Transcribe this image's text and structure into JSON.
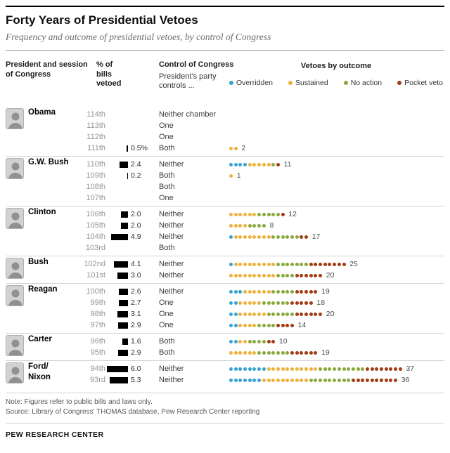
{
  "header": {
    "title": "Forty Years of Presidential Vetoes",
    "subtitle": "Frequency and outcome of presidential vetoes, by control of Congress"
  },
  "columns": {
    "president_line1": "President and session",
    "president_line2": "of Congress",
    "pct_line1": "% of",
    "pct_line2": "bills",
    "pct_line3": "vetoed",
    "control_title": "Control of Congress",
    "control_sub1": "President's party",
    "control_sub2": "controls ...",
    "outcome_title": "Vetoes by outcome"
  },
  "legend": [
    {
      "key": "overridden",
      "label": "Overridden",
      "color": "#33a3d3"
    },
    {
      "key": "sustained",
      "label": "Sustained",
      "color": "#ecb23d"
    },
    {
      "key": "no_action",
      "label": "No action",
      "color": "#8aa93c"
    },
    {
      "key": "pocket",
      "label": "Pocket veto",
      "color": "#a23b12"
    }
  ],
  "footer": {
    "note": "Note: Figures refer to public bills and laws only.",
    "source": "Source: Library of Congress' THOMAS database, Pew Research Center reporting",
    "brand": "PEW RESEARCH CENTER"
  },
  "chart_data": {
    "type": "dot-plot",
    "outcome_order": [
      "overridden",
      "sustained",
      "no_action",
      "pocket"
    ],
    "bar_unit": "percent of bills vetoed, black bar right-aligned, ~5px per 1%",
    "groups": [
      {
        "id": "obama",
        "president": "Obama",
        "rows": [
          {
            "session": "114th",
            "pct": null,
            "pct_label": "",
            "control": "Neither chamber",
            "total": 0,
            "outcomes": {
              "overridden": 0,
              "sustained": 0,
              "no_action": 0,
              "pocket": 0
            }
          },
          {
            "session": "113th",
            "pct": null,
            "pct_label": "",
            "control": "One",
            "total": 0,
            "outcomes": {
              "overridden": 0,
              "sustained": 0,
              "no_action": 0,
              "pocket": 0
            }
          },
          {
            "session": "112th",
            "pct": null,
            "pct_label": "",
            "control": "One",
            "total": 0,
            "outcomes": {
              "overridden": 0,
              "sustained": 0,
              "no_action": 0,
              "pocket": 0
            }
          },
          {
            "session": "111th",
            "pct": 0.5,
            "pct_label": "0.5%",
            "control": "Both",
            "total": 2,
            "outcomes": {
              "overridden": 0,
              "sustained": 2,
              "no_action": 0,
              "pocket": 0
            }
          }
        ]
      },
      {
        "id": "gw-bush",
        "president": "G.W. Bush",
        "rows": [
          {
            "session": "110th",
            "pct": 2.4,
            "pct_label": "2.4",
            "control": "Neither",
            "total": 11,
            "outcomes": {
              "overridden": 4,
              "sustained": 5,
              "no_action": 1,
              "pocket": 1
            }
          },
          {
            "session": "109th",
            "pct": 0.2,
            "pct_label": "0.2",
            "control": "Both",
            "total": 1,
            "outcomes": {
              "overridden": 0,
              "sustained": 1,
              "no_action": 0,
              "pocket": 0
            }
          },
          {
            "session": "108th",
            "pct": null,
            "pct_label": "",
            "control": "Both",
            "total": 0,
            "outcomes": {
              "overridden": 0,
              "sustained": 0,
              "no_action": 0,
              "pocket": 0
            }
          },
          {
            "session": "107th",
            "pct": null,
            "pct_label": "",
            "control": "One",
            "total": 0,
            "outcomes": {
              "overridden": 0,
              "sustained": 0,
              "no_action": 0,
              "pocket": 0
            }
          }
        ]
      },
      {
        "id": "clinton",
        "president": "Clinton",
        "rows": [
          {
            "session": "106th",
            "pct": 2.0,
            "pct_label": "2.0",
            "control": "Neither",
            "total": 12,
            "outcomes": {
              "overridden": 0,
              "sustained": 6,
              "no_action": 5,
              "pocket": 1
            }
          },
          {
            "session": "105th",
            "pct": 2.0,
            "pct_label": "2.0",
            "control": "Neither",
            "total": 8,
            "outcomes": {
              "overridden": 0,
              "sustained": 4,
              "no_action": 4,
              "pocket": 0
            }
          },
          {
            "session": "104th",
            "pct": 4.9,
            "pct_label": "4.9",
            "control": "Neither",
            "total": 17,
            "outcomes": {
              "overridden": 1,
              "sustained": 8,
              "no_action": 6,
              "pocket": 2
            }
          },
          {
            "session": "103rd",
            "pct": null,
            "pct_label": "",
            "control": "Both",
            "total": 0,
            "outcomes": {
              "overridden": 0,
              "sustained": 0,
              "no_action": 0,
              "pocket": 0
            }
          }
        ]
      },
      {
        "id": "bush",
        "president": "Bush",
        "rows": [
          {
            "session": "102nd",
            "pct": 4.1,
            "pct_label": "4.1",
            "control": "Neither",
            "total": 25,
            "outcomes": {
              "overridden": 1,
              "sustained": 9,
              "no_action": 7,
              "pocket": 8
            }
          },
          {
            "session": "101st",
            "pct": 3.0,
            "pct_label": "3.0",
            "control": "Neither",
            "total": 20,
            "outcomes": {
              "overridden": 0,
              "sustained": 10,
              "no_action": 4,
              "pocket": 6
            }
          }
        ]
      },
      {
        "id": "reagan",
        "president": "Reagan",
        "rows": [
          {
            "session": "100th",
            "pct": 2.6,
            "pct_label": "2.6",
            "control": "Neither",
            "total": 19,
            "outcomes": {
              "overridden": 3,
              "sustained": 6,
              "no_action": 5,
              "pocket": 5
            }
          },
          {
            "session": "99th",
            "pct": 2.7,
            "pct_label": "2.7",
            "control": "One",
            "total": 18,
            "outcomes": {
              "overridden": 2,
              "sustained": 5,
              "no_action": 6,
              "pocket": 5
            }
          },
          {
            "session": "98th",
            "pct": 3.1,
            "pct_label": "3.1",
            "control": "One",
            "total": 20,
            "outcomes": {
              "overridden": 2,
              "sustained": 6,
              "no_action": 6,
              "pocket": 6
            }
          },
          {
            "session": "97th",
            "pct": 2.9,
            "pct_label": "2.9",
            "control": "One",
            "total": 14,
            "outcomes": {
              "overridden": 2,
              "sustained": 4,
              "no_action": 4,
              "pocket": 4
            }
          }
        ]
      },
      {
        "id": "carter",
        "president": "Carter",
        "rows": [
          {
            "session": "96th",
            "pct": 1.6,
            "pct_label": "1.6",
            "control": "Both",
            "total": 10,
            "outcomes": {
              "overridden": 2,
              "sustained": 2,
              "no_action": 4,
              "pocket": 2
            }
          },
          {
            "session": "95th",
            "pct": 2.9,
            "pct_label": "2.9",
            "control": "Both",
            "total": 19,
            "outcomes": {
              "overridden": 0,
              "sustained": 6,
              "no_action": 7,
              "pocket": 6
            }
          }
        ]
      },
      {
        "id": "ford-nixon",
        "president": "Ford/\nNixon",
        "rows": [
          {
            "session": "94th",
            "pct": 6.0,
            "pct_label": "6.0",
            "control": "Neither",
            "total": 37,
            "outcomes": {
              "overridden": 8,
              "sustained": 11,
              "no_action": 10,
              "pocket": 8
            }
          },
          {
            "session": "93rd",
            "pct": 5.3,
            "pct_label": "5.3",
            "control": "Neither",
            "total": 36,
            "outcomes": {
              "overridden": 7,
              "sustained": 10,
              "no_action": 9,
              "pocket": 10
            }
          }
        ]
      }
    ]
  }
}
